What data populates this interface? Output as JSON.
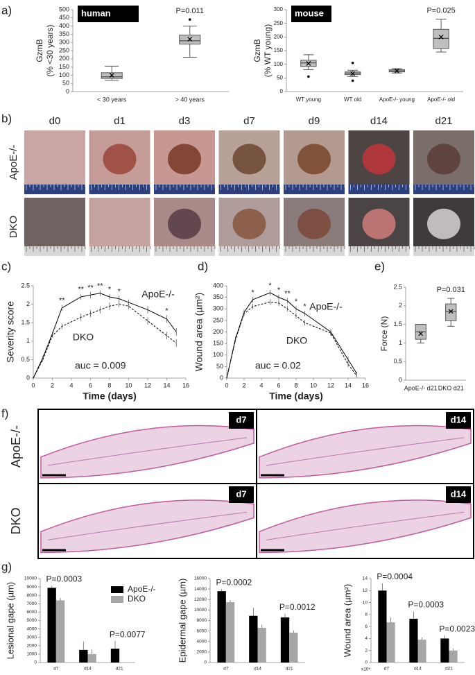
{
  "panel_labels": [
    "a)",
    "b)",
    "c)",
    "d)",
    "e)",
    "f)",
    "g)"
  ],
  "photo_panel": {
    "columns": [
      "d0",
      "d1",
      "d3",
      "d7",
      "d9",
      "d14",
      "d21"
    ],
    "rows": [
      "ApoE-/-",
      "DKO"
    ]
  },
  "histology_panel": {
    "rows": [
      "ApoE-/-",
      "DKO"
    ],
    "columns": [
      "d7",
      "d14"
    ]
  },
  "chart_data": [
    {
      "type": "box",
      "title": "human",
      "ylabel": [
        "GzmB",
        "(% <30 years)"
      ],
      "categories": [
        "< 30 years",
        "> 40 years"
      ],
      "boxes": [
        {
          "min": 70,
          "q1": 80,
          "median": 90,
          "q3": 115,
          "max": 155,
          "mean": 100
        },
        {
          "min": 210,
          "q1": 290,
          "median": 310,
          "q3": 345,
          "max": 400,
          "mean": 320,
          "outliers": [
            440
          ]
        }
      ],
      "color": "#bfbfbf",
      "ylim": [
        0,
        500
      ],
      "yticks": [
        0,
        50,
        100,
        150,
        200,
        250,
        300,
        350,
        400,
        450,
        500
      ],
      "pvalue": "P=0.011"
    },
    {
      "type": "box",
      "title": "mouse",
      "ylabel": [
        "GzmB",
        "(% WT young)"
      ],
      "categories": [
        "WT young",
        "WT old",
        "ApoE-/- young",
        "ApoE-/- old"
      ],
      "boxes": [
        {
          "min": 80,
          "q1": 92,
          "median": 105,
          "q3": 115,
          "max": 135,
          "mean": 103,
          "outliers": [
            55
          ]
        },
        {
          "min": 55,
          "q1": 62,
          "median": 68,
          "q3": 72,
          "max": 78,
          "mean": 66,
          "outliers": [
            105,
            40
          ]
        },
        {
          "min": 68,
          "q1": 72,
          "median": 76,
          "q3": 80,
          "max": 84,
          "mean": 76
        },
        {
          "min": 145,
          "q1": 158,
          "median": 195,
          "q3": 228,
          "max": 265,
          "mean": 200
        }
      ],
      "color": "#bfbfbf",
      "ylim": [
        0,
        300
      ],
      "yticks": [
        0,
        50,
        100,
        150,
        200,
        250,
        300
      ],
      "pvalue": "P=0.025"
    },
    {
      "type": "line",
      "ylabel": "Severity score",
      "xlabel": "Time (days)",
      "x": [
        0,
        1,
        2,
        3,
        5,
        6,
        7,
        8,
        9,
        10,
        12,
        14,
        15
      ],
      "series": [
        {
          "name": "ApoE-/-",
          "color": "#000000",
          "dash": false,
          "values": [
            0,
            0.55,
            1.2,
            1.9,
            2.2,
            2.25,
            2.3,
            2.2,
            2.15,
            2.05,
            1.85,
            1.6,
            1.25
          ],
          "errors": [
            0,
            0.05,
            0.05,
            0.08,
            0.08,
            0.08,
            0.08,
            0.08,
            0.08,
            0.08,
            0.1,
            0.1,
            0.1
          ],
          "significance": [
            null,
            null,
            null,
            "**",
            "**",
            "**",
            "**",
            "*",
            "*",
            null,
            null,
            "*",
            null
          ]
        },
        {
          "name": "DKO",
          "color": "#000000",
          "dash": true,
          "values": [
            0,
            0.5,
            1.15,
            1.4,
            1.65,
            1.75,
            1.85,
            1.95,
            2.0,
            1.95,
            1.55,
            1.15,
            0.95
          ],
          "errors": [
            0,
            0.05,
            0.05,
            0.08,
            0.1,
            0.1,
            0.1,
            0.1,
            0.08,
            0.08,
            0.1,
            0.1,
            0.1
          ]
        }
      ],
      "xlim": [
        0,
        16
      ],
      "xticks": [
        0,
        2,
        4,
        6,
        8,
        10,
        12,
        14,
        16
      ],
      "ylim": [
        0,
        2.5
      ],
      "yticks": [
        0,
        0.5,
        1,
        1.5,
        2,
        2.5
      ],
      "annotation": "auc = 0.009"
    },
    {
      "type": "line",
      "ylabel": "Wound area (µm²)",
      "xlabel": "Time (days)",
      "x": [
        0,
        1,
        2,
        3,
        5,
        6,
        7,
        8,
        9,
        12,
        14,
        15
      ],
      "series": [
        {
          "name": "ApoE-/-",
          "color": "#000000",
          "dash": false,
          "values": [
            0,
            170,
            285,
            340,
            370,
            350,
            335,
            300,
            280,
            200,
            80,
            20
          ],
          "errors": [
            0,
            10,
            12,
            12,
            12,
            12,
            12,
            12,
            12,
            12,
            12,
            8
          ],
          "significance": [
            null,
            null,
            null,
            "*",
            "*",
            "*",
            "**",
            "*",
            "*",
            null,
            null,
            null
          ]
        },
        {
          "name": "DKO",
          "color": "#000000",
          "dash": true,
          "values": [
            0,
            165,
            280,
            310,
            330,
            325,
            300,
            270,
            240,
            195,
            60,
            10
          ],
          "errors": [
            0,
            10,
            12,
            12,
            12,
            12,
            12,
            12,
            12,
            12,
            12,
            8
          ]
        }
      ],
      "xlim": [
        0,
        16
      ],
      "xticks": [
        0,
        2,
        4,
        6,
        8,
        10,
        12,
        14,
        16
      ],
      "ylim": [
        0,
        400
      ],
      "yticks": [
        0,
        50,
        100,
        150,
        200,
        250,
        300,
        350,
        400
      ],
      "annotation": "auc = 0.02"
    },
    {
      "type": "box",
      "ylabel": [
        "Force (N)"
      ],
      "categories": [
        "ApoE-/- d21",
        "DKO d21"
      ],
      "boxes": [
        {
          "min": 1.0,
          "q1": 1.1,
          "median": 1.3,
          "q3": 1.5,
          "max": 1.5,
          "mean": 1.25
        },
        {
          "min": 1.45,
          "q1": 1.6,
          "median": 1.85,
          "q3": 2.05,
          "max": 2.2,
          "mean": 1.85
        }
      ],
      "color": "#bfbfbf",
      "ylim": [
        0,
        2.5
      ],
      "yticks": [
        0,
        0.5,
        1,
        1.5,
        2,
        2.5
      ],
      "pvalue": "P=0.031"
    },
    {
      "type": "bar",
      "ylabel": "Lesional gape (µm)",
      "categories": [
        "d7",
        "d14",
        "d21"
      ],
      "series": [
        {
          "name": "ApoE-/-",
          "color": "#000000",
          "values": [
            8900,
            1500,
            1650
          ],
          "errors": [
            250,
            1000,
            900
          ]
        },
        {
          "name": "DKO",
          "color": "#a6a6a6",
          "values": [
            7400,
            1000,
            null
          ],
          "errors": [
            300,
            600,
            null
          ]
        }
      ],
      "ylim": [
        0,
        10000
      ],
      "yticks": [
        0,
        1000,
        2000,
        3000,
        4000,
        5000,
        6000,
        7000,
        8000,
        9000,
        10000
      ],
      "pvalues": [
        "P=0.0003",
        null,
        "P=0.0077"
      ],
      "legend": true
    },
    {
      "type": "bar",
      "ylabel": "Epidermal gape (µm)",
      "categories": [
        "d7",
        "d14",
        "d21"
      ],
      "series": [
        {
          "color": "#000000",
          "values": [
            13600,
            8900,
            8600
          ],
          "errors": [
            400,
            1500,
            700
          ]
        },
        {
          "color": "#a6a6a6",
          "values": [
            11500,
            6600,
            5700
          ],
          "errors": [
            400,
            600,
            400
          ]
        }
      ],
      "ylim": [
        0,
        16000
      ],
      "yticks": [
        0,
        2000,
        4000,
        6000,
        8000,
        10000,
        12000,
        14000,
        16000
      ],
      "pvalues": [
        "P=0.0002",
        null,
        "P=0.0012"
      ]
    },
    {
      "type": "bar",
      "ylabel": "Wound area (µm²)",
      "categories": [
        "d7",
        "d14",
        "d21"
      ],
      "series": [
        {
          "color": "#000000",
          "values": [
            12,
            7.3,
            4
          ],
          "errors": [
            1.2,
            1.2,
            0.5
          ]
        },
        {
          "color": "#a6a6a6",
          "values": [
            6.7,
            3.8,
            2.0
          ],
          "errors": [
            0.8,
            0.4,
            0.3
          ]
        }
      ],
      "ylim": [
        0,
        14
      ],
      "yticks": [
        0,
        2,
        4,
        6,
        8,
        10,
        12,
        14
      ],
      "pvalues": [
        "P=0.0004",
        "P=0.0003",
        "P=0.0023"
      ],
      "axis_note": "x10⁶"
    }
  ]
}
